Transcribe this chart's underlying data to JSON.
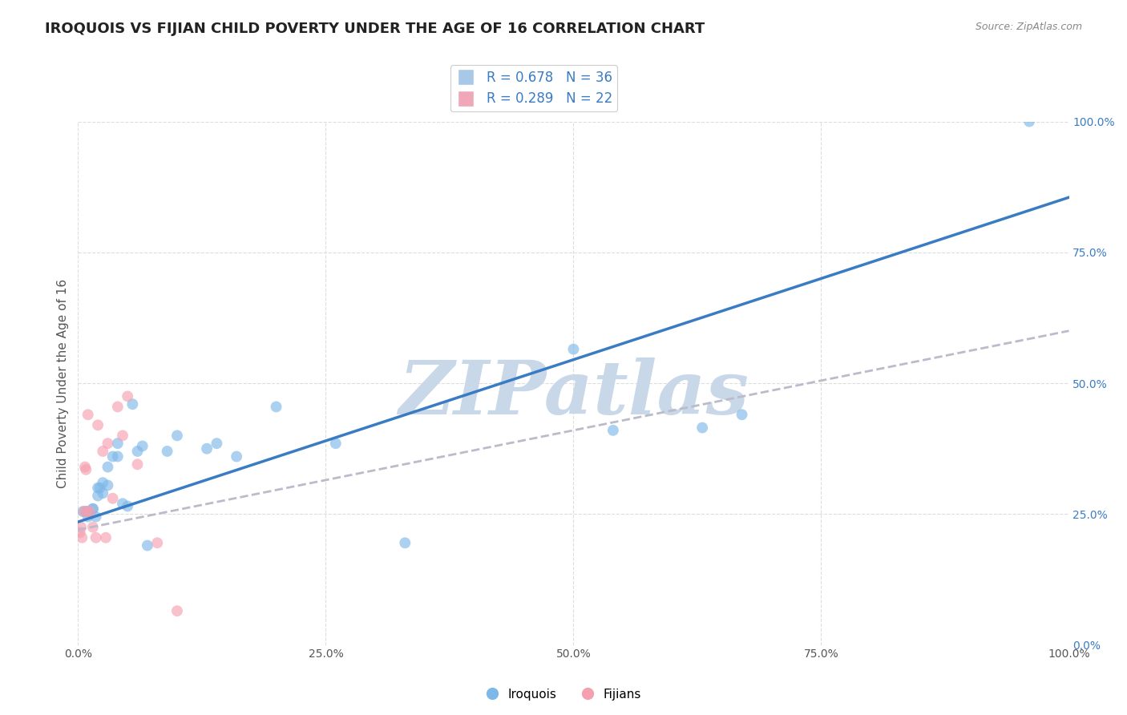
{
  "title": "IROQUOIS VS FIJIAN CHILD POVERTY UNDER THE AGE OF 16 CORRELATION CHART",
  "source": "Source: ZipAtlas.com",
  "ylabel": "Child Poverty Under the Age of 16",
  "xlim": [
    0,
    1
  ],
  "ylim": [
    0,
    1
  ],
  "xticks": [
    0.0,
    0.25,
    0.5,
    0.75,
    1.0
  ],
  "yticks": [
    0.0,
    0.25,
    0.5,
    0.75,
    1.0
  ],
  "xticklabels": [
    "0.0%",
    "25.0%",
    "50.0%",
    "75.0%",
    "100.0%"
  ],
  "yticklabels": [
    "0.0%",
    "25.0%",
    "50.0%",
    "75.0%",
    "100.0%"
  ],
  "blue_color": "#7EB8E8",
  "pink_color": "#F5A0B0",
  "blue_line_color": "#3A7CC3",
  "pink_line_color": "#BBBBCC",
  "background_color": "#FFFFFF",
  "grid_color": "#DDDDDD",
  "watermark_text": "ZIPatlas",
  "watermark_color": "#C8D8E8",
  "legend_box_color_blue": "#A8C8E8",
  "legend_box_color_pink": "#F0A8B8",
  "legend_text_color": "#3A7CC3",
  "title_fontsize": 13,
  "axis_label_fontsize": 11,
  "tick_fontsize": 10,
  "legend_fontsize": 12,
  "dot_size": 100,
  "dot_alpha": 0.65,
  "bottom_legend_label_blue": "Iroquois",
  "bottom_legend_label_pink": "Fijians",
  "blue_line_slope": 0.62,
  "blue_line_intercept": 0.235,
  "pink_line_slope": 0.38,
  "pink_line_intercept": 0.22,
  "iroquois_x": [
    0.005,
    0.008,
    0.01,
    0.01,
    0.015,
    0.015,
    0.018,
    0.02,
    0.02,
    0.022,
    0.025,
    0.025,
    0.03,
    0.03,
    0.035,
    0.04,
    0.04,
    0.045,
    0.05,
    0.055,
    0.06,
    0.065,
    0.07,
    0.09,
    0.1,
    0.13,
    0.14,
    0.16,
    0.2,
    0.26,
    0.33,
    0.5,
    0.54,
    0.63,
    0.67,
    0.96
  ],
  "iroquois_y": [
    0.255,
    0.255,
    0.255,
    0.245,
    0.26,
    0.26,
    0.245,
    0.3,
    0.285,
    0.3,
    0.31,
    0.29,
    0.34,
    0.305,
    0.36,
    0.385,
    0.36,
    0.27,
    0.265,
    0.46,
    0.37,
    0.38,
    0.19,
    0.37,
    0.4,
    0.375,
    0.385,
    0.36,
    0.455,
    0.385,
    0.195,
    0.565,
    0.41,
    0.415,
    0.44,
    1.0
  ],
  "fijian_x": [
    0.002,
    0.003,
    0.004,
    0.006,
    0.007,
    0.008,
    0.009,
    0.01,
    0.012,
    0.015,
    0.018,
    0.02,
    0.025,
    0.028,
    0.03,
    0.035,
    0.04,
    0.045,
    0.05,
    0.06,
    0.08,
    0.1
  ],
  "fijian_y": [
    0.215,
    0.225,
    0.205,
    0.255,
    0.34,
    0.335,
    0.255,
    0.44,
    0.255,
    0.225,
    0.205,
    0.42,
    0.37,
    0.205,
    0.385,
    0.28,
    0.455,
    0.4,
    0.475,
    0.345,
    0.195,
    0.065
  ]
}
